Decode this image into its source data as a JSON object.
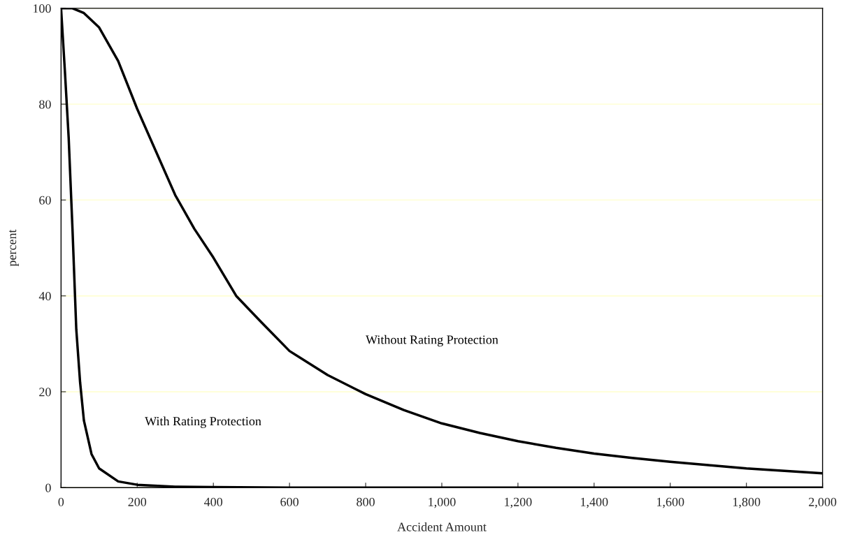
{
  "chart_data": {
    "type": "line",
    "xlabel": "Accident Amount",
    "ylabel": "percent",
    "xlim": [
      0,
      2000
    ],
    "ylim": [
      0,
      100
    ],
    "xticks": [
      0,
      200,
      400,
      600,
      800,
      {
        "value": 1000,
        "label": "1,000"
      },
      {
        "value": 1200,
        "label": "1,200"
      },
      {
        "value": 1400,
        "label": "1,400"
      },
      {
        "value": 1600,
        "label": "1,600"
      },
      {
        "value": 1800,
        "label": "1,800"
      },
      {
        "value": 2000,
        "label": "2,000"
      }
    ],
    "yticks": [
      0,
      20,
      40,
      60,
      80,
      100
    ],
    "annotations": [
      "Without Rating Protection",
      "With Rating Protection"
    ],
    "grid": "y",
    "legend": false,
    "marker": "none",
    "line_style": "solid",
    "series": [
      {
        "color": "#000000",
        "x": [
          0,
          30,
          60,
          100,
          150,
          200,
          250,
          300,
          350,
          400,
          460,
          520,
          600,
          700,
          800,
          900,
          1000,
          1100,
          1200,
          1300,
          1400,
          1500,
          1600,
          1700,
          1800,
          1900,
          2000
        ],
        "values": [
          100,
          100,
          99,
          96,
          89,
          79,
          70,
          61,
          54,
          48,
          40,
          35,
          28.5,
          23.5,
          19.5,
          16.2,
          13.4,
          11.4,
          9.7,
          8.3,
          7.1,
          6.2,
          5.4,
          4.7,
          4.0,
          3.5,
          3.0
        ]
      },
      {
        "color": "#000000",
        "x": [
          0,
          10,
          20,
          30,
          40,
          50,
          60,
          80,
          100,
          150,
          200,
          300,
          400,
          600,
          1000,
          1500,
          2000
        ],
        "values": [
          100,
          87,
          73,
          54,
          33,
          22,
          14,
          7,
          4,
          1.3,
          0.6,
          0.2,
          0.1,
          0,
          0,
          0,
          0
        ]
      }
    ]
  }
}
